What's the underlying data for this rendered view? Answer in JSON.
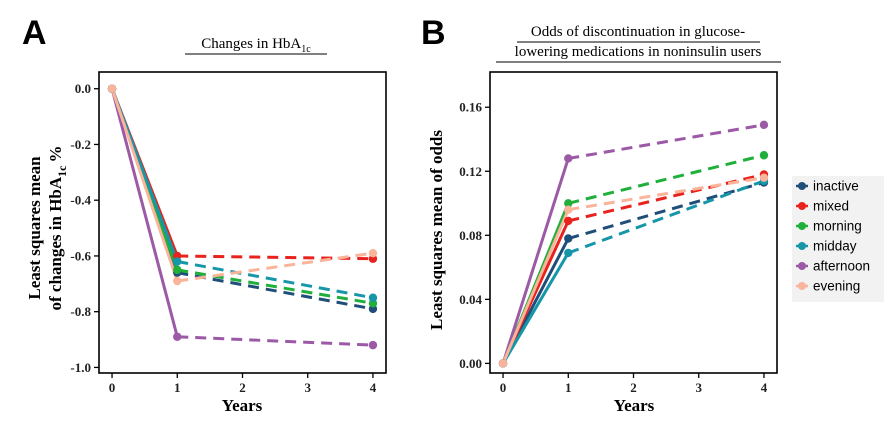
{
  "chart_data": [
    {
      "panel": "A",
      "type": "line",
      "title": "Changes in HbA1c",
      "title_main": "Changes in HbA",
      "title_sub": "1c",
      "xlabel": "Years",
      "ylabel_line1": "Least squares mean",
      "ylabel_line2_main": "of changes in HbA",
      "ylabel_line2_sub": "1c",
      "ylabel_line2_tail": "%",
      "x_ticks": [
        0,
        1,
        2,
        3,
        4
      ],
      "x_tick_labels": [
        "0",
        "1",
        "2",
        "3",
        "4"
      ],
      "y_ticks": [
        0.0,
        -0.2,
        -0.4,
        -0.6,
        -0.8,
        -1.0
      ],
      "y_tick_labels": [
        "0.0",
        "-0.2",
        "-0.4",
        "-0.6",
        "-0.8",
        "-1.0"
      ],
      "xlim": [
        -0.2,
        4.2
      ],
      "ylim": [
        -1.02,
        0.06
      ],
      "grid": false,
      "x": [
        0,
        1,
        4
      ],
      "series": [
        {
          "name": "inactive",
          "color": "#1F4E79",
          "values": [
            0.0,
            -0.66,
            -0.79
          ]
        },
        {
          "name": "mixed",
          "color": "#E8221C",
          "values": [
            0.0,
            -0.6,
            -0.61
          ]
        },
        {
          "name": "morning",
          "color": "#1FAF3A",
          "values": [
            0.0,
            -0.65,
            -0.77
          ]
        },
        {
          "name": "midday",
          "color": "#1696A8",
          "values": [
            0.0,
            -0.62,
            -0.75
          ]
        },
        {
          "name": "afternoon",
          "color": "#9B59A6",
          "values": [
            0.0,
            -0.89,
            -0.92
          ]
        },
        {
          "name": "evening",
          "color": "#F9B49A",
          "values": [
            0.0,
            -0.69,
            -0.59
          ]
        }
      ]
    },
    {
      "panel": "B",
      "type": "line",
      "title_line1": "Odds of discontinuation in glucose-",
      "title_line2": "lowering medications in noninsulin users",
      "xlabel": "Years",
      "ylabel": "Least squares mean of odds",
      "x_ticks": [
        0,
        1,
        2,
        3,
        4
      ],
      "x_tick_labels": [
        "0",
        "1",
        "2",
        "3",
        "4"
      ],
      "y_ticks": [
        0.0,
        0.04,
        0.08,
        0.12,
        0.16
      ],
      "y_tick_labels": [
        "0.00",
        "0.04",
        "0.08",
        "0.12",
        "0.16"
      ],
      "xlim": [
        -0.2,
        4.2
      ],
      "ylim": [
        -0.006,
        0.182
      ],
      "grid": false,
      "legend_position": "right",
      "x": [
        0,
        1,
        4
      ],
      "series": [
        {
          "name": "inactive",
          "color": "#1F4E79",
          "values": [
            0.0,
            0.078,
            0.113
          ]
        },
        {
          "name": "mixed",
          "color": "#E8221C",
          "values": [
            0.0,
            0.089,
            0.118
          ]
        },
        {
          "name": "morning",
          "color": "#1FAF3A",
          "values": [
            0.0,
            0.1,
            0.13
          ]
        },
        {
          "name": "midday",
          "color": "#1696A8",
          "values": [
            0.0,
            0.069,
            0.114
          ]
        },
        {
          "name": "afternoon",
          "color": "#9B59A6",
          "values": [
            0.0,
            0.128,
            0.149
          ]
        },
        {
          "name": "evening",
          "color": "#F9B49A",
          "values": [
            0.0,
            0.096,
            0.116
          ]
        }
      ]
    }
  ],
  "legend": {
    "items": [
      {
        "name": "inactive",
        "color": "#1F4E79"
      },
      {
        "name": "mixed",
        "color": "#E8221C"
      },
      {
        "name": "morning",
        "color": "#1FAF3A"
      },
      {
        "name": "midday",
        "color": "#1696A8"
      },
      {
        "name": "afternoon",
        "color": "#9B59A6"
      },
      {
        "name": "evening",
        "color": "#F9B49A"
      }
    ]
  }
}
